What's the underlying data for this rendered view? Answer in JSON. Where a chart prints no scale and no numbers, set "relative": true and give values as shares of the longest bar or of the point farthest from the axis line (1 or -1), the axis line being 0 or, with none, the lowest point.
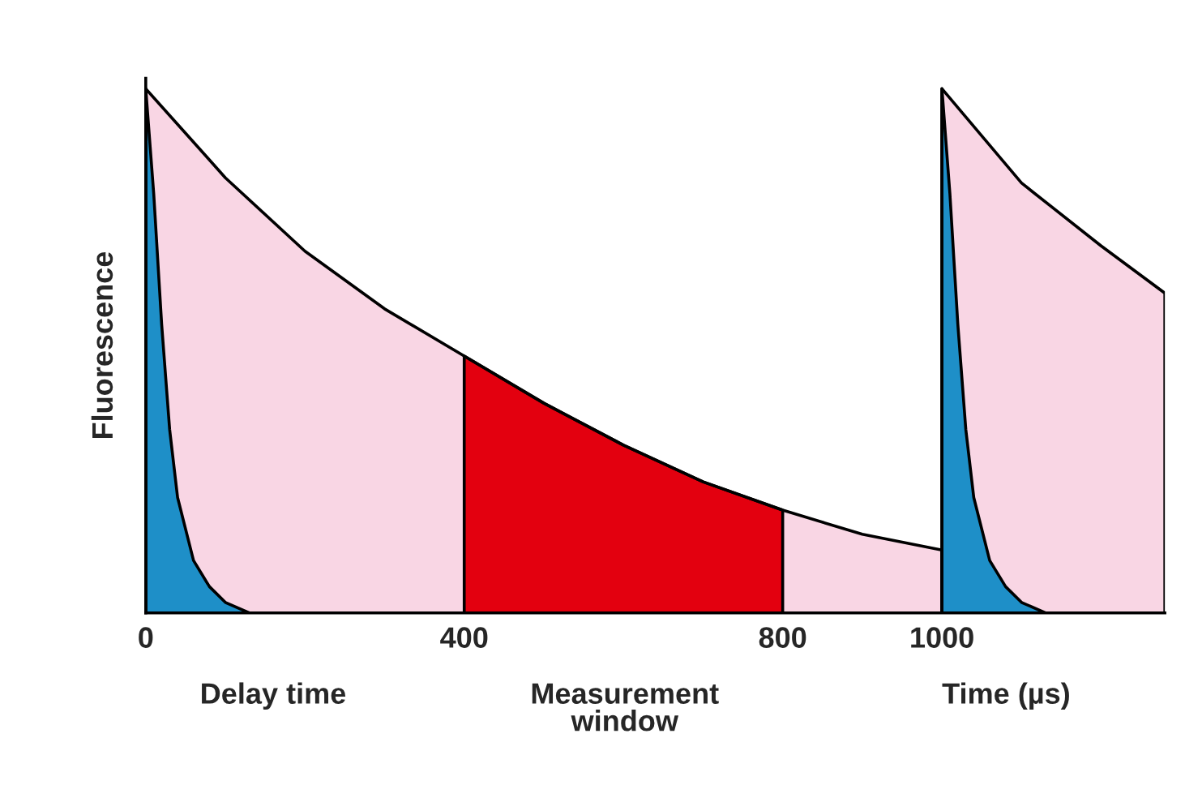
{
  "chart_data": {
    "type": "area",
    "relative": true,
    "ylabel": "Fluorescence",
    "xlabel": "Time (µs)",
    "xlim": [
      0,
      1280
    ],
    "xticks": [
      0,
      400,
      800,
      1000
    ],
    "series": [
      {
        "color": "#f9d6e4",
        "x": [
          0,
          100,
          200,
          300,
          400,
          500,
          600,
          700,
          800,
          900,
          1000
        ],
        "values": [
          1.0,
          0.83,
          0.69,
          0.58,
          0.49,
          0.4,
          0.32,
          0.25,
          0.196,
          0.15,
          0.12
        ]
      },
      {
        "color": "#f9d6e4",
        "x": [
          1000,
          1100,
          1200,
          1280
        ],
        "values": [
          1.0,
          0.82,
          0.7,
          0.61
        ]
      },
      {
        "color": "#e3000f",
        "x": [
          400,
          500,
          600,
          700,
          800
        ],
        "values": [
          0.49,
          0.4,
          0.32,
          0.25,
          0.196
        ]
      },
      {
        "color": "#1e8fc8",
        "x": [
          0,
          10,
          20,
          30,
          40,
          60,
          80,
          100,
          130
        ],
        "values": [
          1.0,
          0.8,
          0.55,
          0.35,
          0.22,
          0.1,
          0.05,
          0.02,
          0
        ]
      },
      {
        "color": "#1e8fc8",
        "x": [
          1000,
          1010,
          1020,
          1030,
          1040,
          1060,
          1080,
          1100,
          1130
        ],
        "values": [
          1.0,
          0.8,
          0.55,
          0.35,
          0.22,
          0.1,
          0.05,
          0.02,
          0
        ]
      }
    ],
    "annotations": [
      "Delay time",
      "Measurement\nwindow"
    ]
  }
}
